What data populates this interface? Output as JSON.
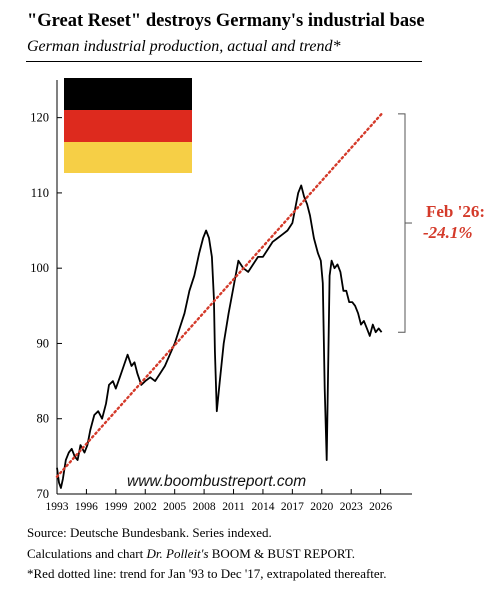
{
  "header": {
    "title": "\"Great Reset\" destroys Germany's industrial base",
    "subtitle": "German industrial production, actual and trend*"
  },
  "chart_data": {
    "type": "line",
    "xlim": [
      1993,
      2029.2
    ],
    "ylim": [
      70,
      125
    ],
    "xticks": [
      "1993",
      "1996",
      "1999",
      "2002",
      "2005",
      "2008",
      "2011",
      "2014",
      "2017",
      "2020",
      "2023",
      "2026"
    ],
    "yticks": [
      70,
      80,
      90,
      100,
      110,
      120
    ],
    "grid": false,
    "watermark": "www.boombustreport.com",
    "annotation": {
      "line1": "Feb '26:",
      "line2": "-24.1%",
      "color": "#d43a2a"
    },
    "bracket": {
      "top": 120.5,
      "bottom": 91.5
    },
    "series": [
      {
        "style": "actual",
        "color": "#000000",
        "x": [
          1993.0,
          1993.2,
          1993.4,
          1993.6,
          1993.9,
          1994.2,
          1994.5,
          1994.8,
          1995.1,
          1995.4,
          1995.8,
          1996.1,
          1996.4,
          1996.8,
          1997.2,
          1997.6,
          1998.0,
          1998.3,
          1998.7,
          1999.0,
          1999.4,
          1999.8,
          2000.2,
          2000.6,
          2000.9,
          2001.2,
          2001.6,
          2002.0,
          2002.5,
          2003.0,
          2003.5,
          2004.0,
          2004.5,
          2005.0,
          2005.5,
          2006.0,
          2006.5,
          2007.0,
          2007.5,
          2007.9,
          2008.2,
          2008.5,
          2008.8,
          2009.0,
          2009.1,
          2009.3,
          2009.6,
          2010.0,
          2010.5,
          2011.0,
          2011.5,
          2012.0,
          2012.5,
          2013.0,
          2013.5,
          2014.0,
          2014.5,
          2015.0,
          2015.5,
          2016.0,
          2016.5,
          2017.0,
          2017.3,
          2017.6,
          2017.9,
          2018.2,
          2018.5,
          2018.8,
          2019.2,
          2019.6,
          2019.9,
          2020.1,
          2020.3,
          2020.5,
          2020.8,
          2021.0,
          2021.3,
          2021.6,
          2021.9,
          2022.2,
          2022.5,
          2022.8,
          2023.1,
          2023.4,
          2023.7,
          2024.0,
          2024.3,
          2024.6,
          2024.9,
          2025.2,
          2025.5,
          2025.8,
          2026.1
        ],
        "y": [
          73.5,
          71.5,
          70.8,
          72,
          74.5,
          75.5,
          76,
          75,
          74.5,
          76.5,
          75.5,
          76.5,
          78.5,
          80.5,
          81,
          80,
          82,
          84.5,
          85,
          84,
          85.5,
          87,
          88.5,
          87,
          87.5,
          86,
          84.5,
          85,
          85.5,
          85,
          86,
          87,
          88.5,
          90,
          92,
          94,
          97,
          99,
          102,
          104,
          105,
          104,
          101.5,
          96,
          89,
          81,
          85,
          90,
          94,
          97.5,
          101,
          100,
          99.5,
          100.5,
          101.5,
          101.5,
          102.5,
          103.5,
          104,
          104.5,
          105,
          106,
          108,
          110,
          111,
          109.5,
          108.5,
          107,
          104,
          102,
          101,
          98,
          84,
          74.5,
          99,
          101,
          100,
          100.5,
          99.5,
          97,
          97,
          95.5,
          95.5,
          95,
          94,
          92.5,
          93,
          92,
          91,
          92.5,
          91.5,
          92,
          91.5
        ]
      },
      {
        "style": "trend",
        "color": "#d43a2a",
        "x": [
          1993,
          2026.1
        ],
        "y": [
          72.3,
          120.5
        ]
      }
    ]
  },
  "footer": {
    "source": "Source: Deutsche Bundesbank. Series indexed.",
    "calc_prefix": "Calculations and chart ",
    "calc_author": "Dr. Polleit's",
    "calc_suffix": " BOOM & BUST REPORT.",
    "trend_note": "*Red dotted line: trend for Jan '93 to Dec '17, extrapolated thereafter."
  }
}
